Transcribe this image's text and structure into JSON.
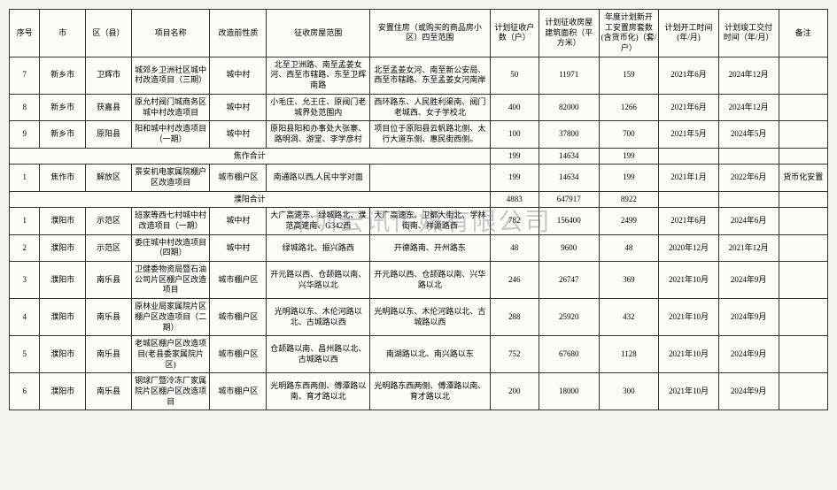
{
  "watermark": "深圳云讯传媒有限公司",
  "header": {
    "seq": "序号",
    "city": "市",
    "county": "区（县）",
    "project": "项目名称",
    "nature": "改造前性质",
    "scope": "征收房屋范围",
    "settlement": "安置住房（或购买的商品房小区）四至范围",
    "households": "计划征收户数（户）",
    "area": "计划征收房屋建筑面积（平方米）",
    "sets": "年度计划新开工安置房套数(含货币化)（套/户）",
    "start": "计划开工时间(年/月)",
    "end": "计划竣工交付时间（年/月）",
    "remark": "备注"
  },
  "subtotal_jiaozuo": {
    "label": "焦作合计",
    "households": "199",
    "area": "14634",
    "sets": "199"
  },
  "subtotal_puyang": {
    "label": "濮阳合计",
    "households": "4883",
    "area": "647917",
    "sets": "8922"
  },
  "rows": [
    {
      "seq": "7",
      "city": "新乡市",
      "county": "卫辉市",
      "project": "城郊乡卫洲社区城中村改造项目（三期）",
      "nature": "城中村",
      "scope": "北至卫洲路、南至孟姜女河、西至市辖路、东至卫辉南路",
      "settlement": "北至孟姜女河、南至新公安局、西至市辖路、东至孟姜女河南岸",
      "households": "50",
      "area": "11971",
      "sets": "159",
      "start": "2021年6月",
      "end": "2024年12月",
      "remark": ""
    },
    {
      "seq": "8",
      "city": "新乡市",
      "county": "获嘉县",
      "project": "原允村阀门城商务区城中村改造项目",
      "nature": "城中村",
      "scope": "小毛庄、允王庄、原阀门老城界处范围内",
      "settlement": "西环路东、人民胜利渠南、阀门老城西、女子学校北",
      "households": "400",
      "area": "82000",
      "sets": "1266",
      "start": "2021年6月",
      "end": "2024年12月",
      "remark": ""
    },
    {
      "seq": "9",
      "city": "新乡市",
      "county": "原阳县",
      "project": "阳和城中村改造项目（一期）",
      "nature": "城中村",
      "scope": "原阳县阳和办事处大张寨、路明洞、游堂、李学彦村",
      "settlement": "项目位于原阳县云帆路北侧、太行大道东侧、惠民街西侧。",
      "households": "100",
      "area": "37800",
      "sets": "700",
      "start": "2021年5月",
      "end": "2024年5月",
      "remark": ""
    }
  ],
  "jiaozuo_rows": [
    {
      "seq": "1",
      "city": "焦作市",
      "county": "解放区",
      "project": "景安机电家属院棚户区改造项目",
      "nature": "城市棚户区",
      "scope": "南通路以西,人民中学对面",
      "settlement": "",
      "households": "199",
      "area": "14634",
      "sets": "199",
      "start": "2021年1月",
      "end": "2022年6月",
      "remark": "货币化安置"
    }
  ],
  "puyang_rows": [
    {
      "seq": "1",
      "city": "濮阳市",
      "county": "示范区",
      "project": "班家等西七村城中村改造项目（一期）",
      "nature": "城中村",
      "scope": "大广高速东、绿城路北、濮范高速南、G342西",
      "settlement": "大广高速东、卫都大街北、学林街南、祥源路西",
      "households": "782",
      "area": "156400",
      "sets": "2499",
      "start": "2021年6月",
      "end": "2024年6月",
      "remark": ""
    },
    {
      "seq": "2",
      "city": "濮阳市",
      "county": "示范区",
      "project": "委庄城中村改造项目（四期）",
      "nature": "城中村",
      "scope": "绿城路北、振兴路西",
      "settlement": "开德路南、开州路东",
      "households": "48",
      "area": "9600",
      "sets": "48",
      "start": "2020年12月",
      "end": "2021年12月",
      "remark": ""
    },
    {
      "seq": "3",
      "city": "濮阳市",
      "county": "南乐县",
      "project": "卫健委物资局暨石油公司片区棚户区改造项目",
      "nature": "城市棚户区",
      "scope": "开元路以西、仓颉路以南、兴华路以北",
      "settlement": "开元路以西、仓颉路以南、兴华路以北",
      "households": "246",
      "area": "26747",
      "sets": "369",
      "start": "2021年10月",
      "end": "2024年9月",
      "remark": ""
    },
    {
      "seq": "4",
      "city": "濮阳市",
      "county": "南乐县",
      "project": "原林业局家属院片区棚户区改造项目（二期）",
      "nature": "城市棚户区",
      "scope": "光明路以东、木伦河路以北、古城路以西",
      "settlement": "光明路以东、木伦河路以北、古城路以西",
      "households": "288",
      "area": "25920",
      "sets": "432",
      "start": "2021年10月",
      "end": "2024年9月",
      "remark": ""
    },
    {
      "seq": "5",
      "city": "濮阳市",
      "county": "南乐县",
      "project": "老城区棚户区改造项目(老县委家属院片区)",
      "nature": "城市棚户区",
      "scope": "仓颉路以南、昌州路以北、古城路以西",
      "settlement": "南湖路以北、南兴路以东",
      "households": "752",
      "area": "67680",
      "sets": "1128",
      "start": "2021年10月",
      "end": "2024年9月",
      "remark": ""
    },
    {
      "seq": "6",
      "city": "濮阳市",
      "county": "南乐县",
      "project": "钢球厂暨冷冻厂家属院片区棚户区改造项目",
      "nature": "城市棚户区",
      "scope": "光明路东西两侧、傅潭路以南、育才路以北",
      "settlement": "光明路东西两侧、傅潭路以南、育才路以北",
      "households": "200",
      "area": "18000",
      "sets": "300",
      "start": "2021年10月",
      "end": "2024年9月",
      "remark": ""
    }
  ]
}
